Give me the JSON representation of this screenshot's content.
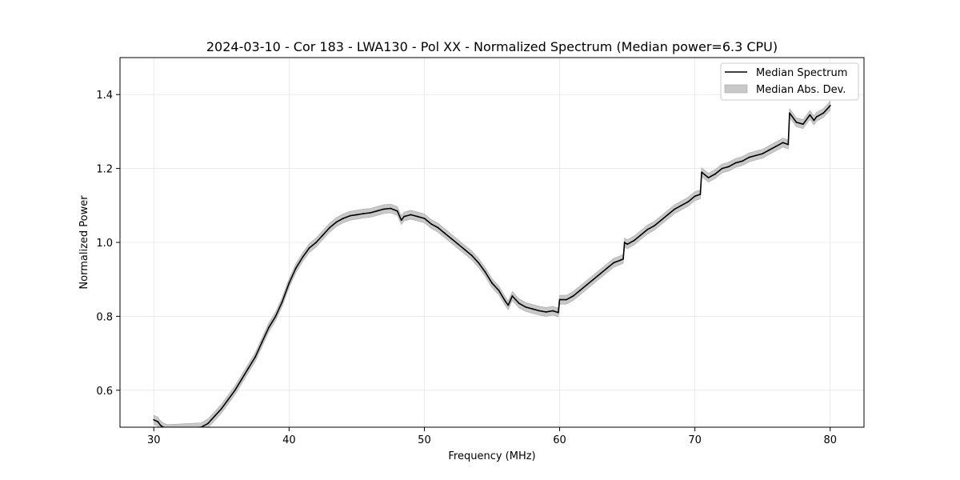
{
  "chart_data": {
    "type": "line",
    "title": "2024-03-10 - Cor 183 - LWA130 - Pol XX - Normalized Spectrum (Median power=6.3 CPU)",
    "xlabel": "Frequency (MHz)",
    "ylabel": "Normalized Power",
    "xlim": [
      27.5,
      82.5
    ],
    "ylim": [
      0.5,
      1.5
    ],
    "x_ticks": [
      30,
      40,
      50,
      60,
      70,
      80
    ],
    "y_ticks": [
      0.6,
      0.8,
      1.0,
      1.2,
      1.4
    ],
    "x_tick_labels": [
      "30",
      "40",
      "50",
      "60",
      "70",
      "80"
    ],
    "y_tick_labels": [
      "0.6",
      "0.8",
      "1.0",
      "1.2",
      "1.4"
    ],
    "grid": true,
    "legend_position": "top-right",
    "legend": [
      "Median Spectrum",
      "Median Abs. Dev."
    ],
    "series": [
      {
        "name": "Median Spectrum",
        "color": "#000000",
        "band_name": "Median Abs. Dev.",
        "band_color": "#c8c8c8",
        "band_halfwidth": 0.012,
        "x": [
          30.0,
          30.3,
          30.5,
          30.7,
          31.0,
          33.5,
          34.0,
          34.5,
          35.0,
          35.5,
          36.0,
          36.5,
          37.0,
          37.5,
          38.0,
          38.5,
          39.0,
          39.5,
          40.0,
          40.5,
          41.0,
          41.5,
          42.0,
          42.5,
          43.0,
          43.5,
          44.0,
          44.5,
          45.0,
          45.5,
          46.0,
          46.5,
          47.0,
          47.5,
          48.0,
          48.3,
          48.5,
          49.0,
          49.5,
          50.0,
          50.5,
          51.0,
          51.5,
          52.0,
          52.5,
          53.0,
          53.5,
          54.0,
          54.5,
          55.0,
          55.5,
          56.0,
          56.2,
          56.5,
          57.0,
          57.5,
          58.0,
          58.5,
          59.0,
          59.5,
          59.9,
          60.0,
          60.5,
          61.0,
          61.5,
          62.0,
          62.5,
          63.0,
          63.5,
          64.0,
          64.5,
          64.7,
          64.8,
          65.0,
          65.5,
          66.0,
          66.5,
          67.0,
          67.5,
          68.0,
          68.5,
          69.0,
          69.5,
          70.0,
          70.4,
          70.5,
          71.0,
          71.5,
          72.0,
          72.5,
          73.0,
          73.5,
          74.0,
          74.5,
          75.0,
          75.5,
          76.0,
          76.5,
          76.9,
          77.0,
          77.5,
          78.0,
          78.5,
          78.8,
          79.0,
          79.5,
          80.0
        ],
        "values": [
          0.52,
          0.515,
          0.505,
          0.5,
          0.495,
          0.5,
          0.51,
          0.53,
          0.55,
          0.575,
          0.6,
          0.63,
          0.66,
          0.69,
          0.73,
          0.77,
          0.8,
          0.84,
          0.89,
          0.93,
          0.96,
          0.985,
          1.0,
          1.02,
          1.04,
          1.055,
          1.065,
          1.072,
          1.075,
          1.078,
          1.08,
          1.085,
          1.09,
          1.092,
          1.085,
          1.06,
          1.07,
          1.075,
          1.07,
          1.065,
          1.05,
          1.04,
          1.025,
          1.01,
          0.995,
          0.98,
          0.965,
          0.945,
          0.92,
          0.89,
          0.87,
          0.84,
          0.83,
          0.855,
          0.835,
          0.825,
          0.82,
          0.815,
          0.812,
          0.815,
          0.81,
          0.845,
          0.845,
          0.855,
          0.87,
          0.885,
          0.9,
          0.915,
          0.93,
          0.945,
          0.952,
          0.955,
          1.0,
          0.995,
          1.005,
          1.02,
          1.035,
          1.045,
          1.06,
          1.075,
          1.09,
          1.1,
          1.11,
          1.125,
          1.13,
          1.19,
          1.175,
          1.185,
          1.2,
          1.205,
          1.215,
          1.22,
          1.23,
          1.235,
          1.24,
          1.25,
          1.26,
          1.27,
          1.265,
          1.35,
          1.325,
          1.32,
          1.345,
          1.33,
          1.34,
          1.35,
          1.37
        ]
      }
    ]
  }
}
